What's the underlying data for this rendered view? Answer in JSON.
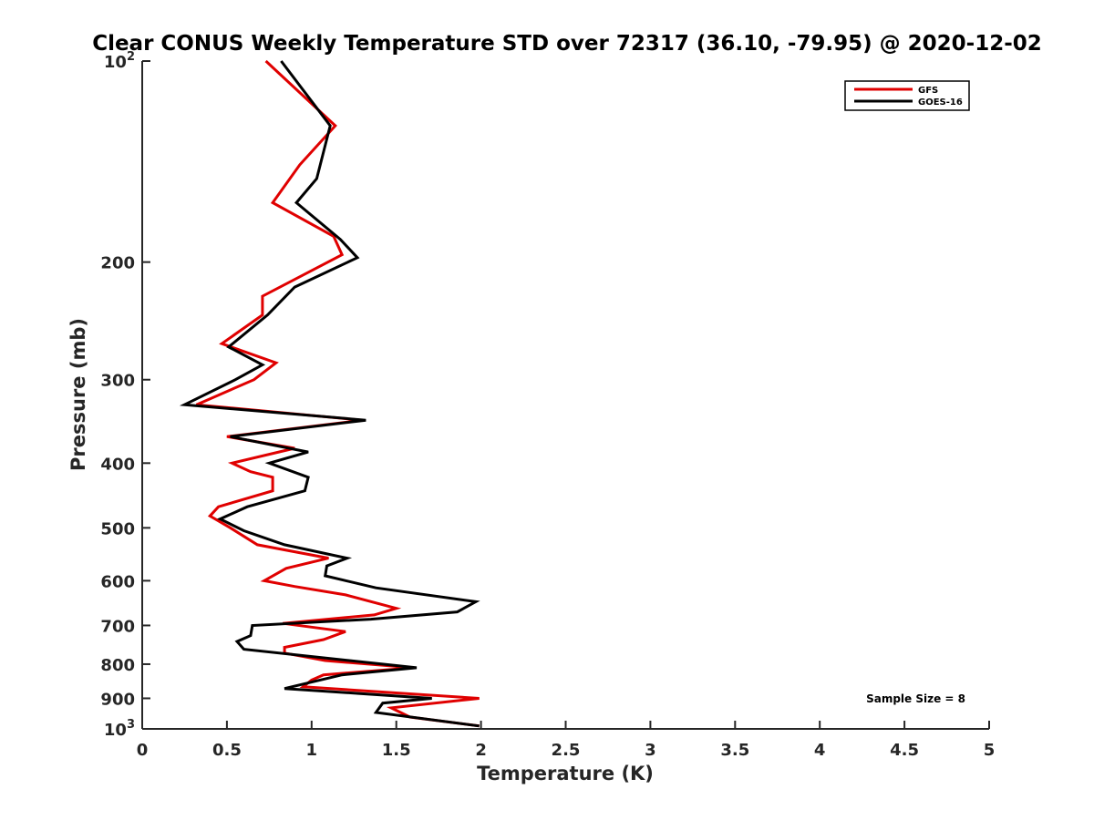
{
  "chart_data": {
    "type": "line",
    "title": "Clear CONUS Weekly Temperature STD over 72317 (36.10, -79.95) @ 2020-12-02",
    "xlabel": "Temperature (K)",
    "ylabel": "Pressure (mb)",
    "xlim": [
      0,
      5
    ],
    "ylim": [
      100,
      1000
    ],
    "y_scale": "log",
    "y_reversed": true,
    "grid": false,
    "legend_position": "top-right",
    "x_ticks": [
      "0",
      "0.5",
      "1",
      "1.5",
      "2",
      "2.5",
      "3",
      "3.5",
      "4",
      "4.5",
      "5"
    ],
    "y_ticks": [
      {
        "value": 100,
        "label": "10",
        "sup": "2"
      },
      {
        "value": 200,
        "label": "200"
      },
      {
        "value": 300,
        "label": "300"
      },
      {
        "value": 400,
        "label": "400"
      },
      {
        "value": 500,
        "label": "500"
      },
      {
        "value": 600,
        "label": "600"
      },
      {
        "value": 700,
        "label": "700"
      },
      {
        "value": 800,
        "label": "800"
      },
      {
        "value": 900,
        "label": "900"
      },
      {
        "value": 1000,
        "label": "10",
        "sup": "3"
      }
    ],
    "annotation": "Sample Size = 8",
    "series": [
      {
        "name": "GFS",
        "color": "#e00000",
        "points": [
          [
            0.73,
            100
          ],
          [
            1.14,
            125
          ],
          [
            0.93,
            143
          ],
          [
            0.77,
            163
          ],
          [
            1.13,
            183
          ],
          [
            1.18,
            195
          ],
          [
            0.71,
            225
          ],
          [
            0.71,
            240
          ],
          [
            0.47,
            265
          ],
          [
            0.79,
            283
          ],
          [
            0.66,
            300
          ],
          [
            0.32,
            327
          ],
          [
            1.3,
            345
          ],
          [
            0.5,
            365
          ],
          [
            0.9,
            380
          ],
          [
            0.53,
            400
          ],
          [
            0.64,
            412
          ],
          [
            0.77,
            420
          ],
          [
            0.77,
            440
          ],
          [
            0.45,
            465
          ],
          [
            0.4,
            480
          ],
          [
            0.52,
            500
          ],
          [
            0.68,
            530
          ],
          [
            1.1,
            555
          ],
          [
            0.85,
            575
          ],
          [
            0.72,
            600
          ],
          [
            0.9,
            612
          ],
          [
            1.2,
            630
          ],
          [
            1.5,
            660
          ],
          [
            1.37,
            675
          ],
          [
            0.83,
            695
          ],
          [
            1.2,
            715
          ],
          [
            1.07,
            735
          ],
          [
            0.84,
            755
          ],
          [
            0.84,
            770
          ],
          [
            1.08,
            790
          ],
          [
            1.6,
            810
          ],
          [
            1.07,
            830
          ],
          [
            1.0,
            845
          ],
          [
            0.95,
            865
          ],
          [
            1.99,
            900
          ],
          [
            1.47,
            930
          ],
          [
            1.58,
            960
          ],
          [
            1.99,
            990
          ]
        ]
      },
      {
        "name": "GOES-16",
        "color": "#000000",
        "points": [
          [
            0.82,
            100
          ],
          [
            1.11,
            125
          ],
          [
            1.03,
            150
          ],
          [
            0.91,
            163
          ],
          [
            1.17,
            185
          ],
          [
            1.27,
            197
          ],
          [
            0.9,
            218
          ],
          [
            0.74,
            240
          ],
          [
            0.51,
            268
          ],
          [
            0.71,
            285
          ],
          [
            0.55,
            300
          ],
          [
            0.25,
            327
          ],
          [
            1.32,
            345
          ],
          [
            0.52,
            365
          ],
          [
            0.98,
            385
          ],
          [
            0.75,
            400
          ],
          [
            0.98,
            420
          ],
          [
            0.96,
            440
          ],
          [
            0.62,
            465
          ],
          [
            0.46,
            485
          ],
          [
            0.6,
            505
          ],
          [
            0.84,
            530
          ],
          [
            1.21,
            555
          ],
          [
            1.09,
            570
          ],
          [
            1.08,
            590
          ],
          [
            1.38,
            615
          ],
          [
            1.97,
            645
          ],
          [
            1.86,
            668
          ],
          [
            1.35,
            685
          ],
          [
            0.65,
            700
          ],
          [
            0.64,
            725
          ],
          [
            0.56,
            740
          ],
          [
            0.6,
            760
          ],
          [
            1.62,
            810
          ],
          [
            1.18,
            830
          ],
          [
            0.84,
            870
          ],
          [
            1.71,
            900
          ],
          [
            1.42,
            915
          ],
          [
            1.38,
            945
          ],
          [
            1.99,
            990
          ]
        ]
      }
    ]
  }
}
